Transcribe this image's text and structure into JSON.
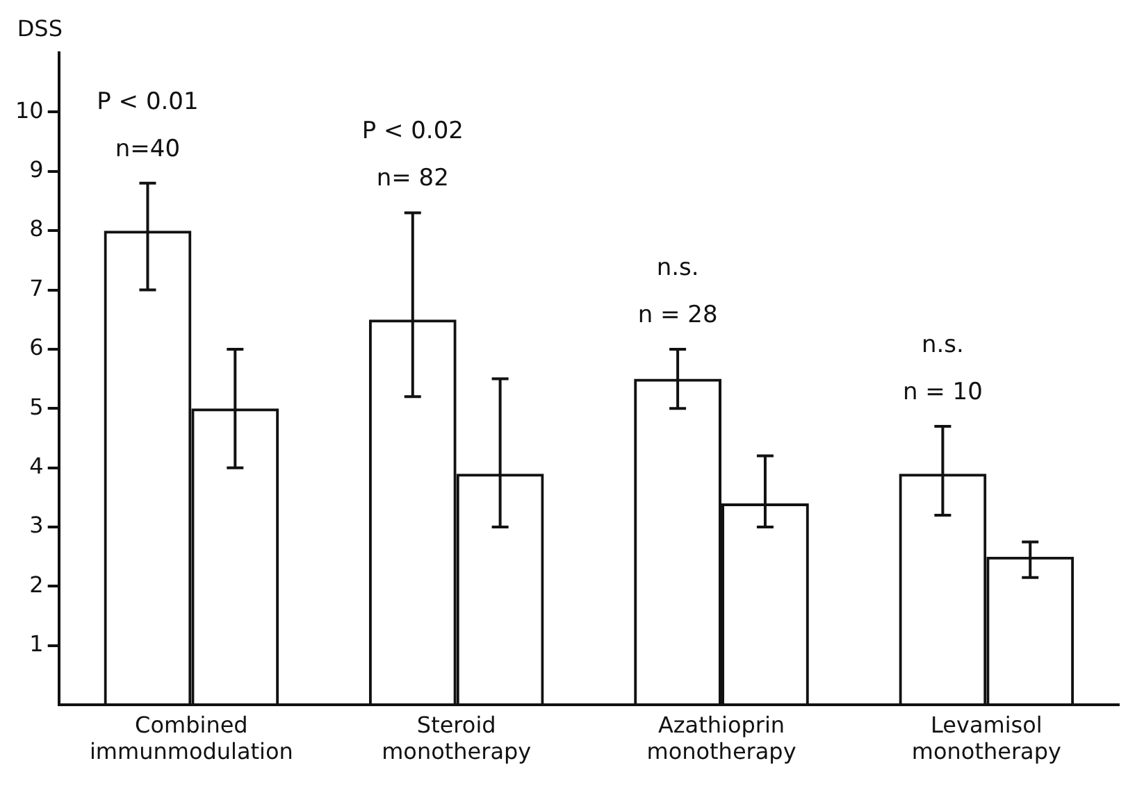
{
  "chart_data": {
    "type": "bar",
    "ylabel": "DSS",
    "categories": [
      "Combined immunmodulation",
      "Steroid monotherapy",
      "Azathioprin monotherapy",
      "Levamisol monotherapy"
    ],
    "series": [
      {
        "color": "#111111",
        "values": [
          8,
          6.5,
          5.5,
          3.9
        ],
        "errors": [
          [
            7.0,
            8.8
          ],
          [
            5.2,
            8.3
          ],
          [
            5.0,
            6.0
          ],
          [
            3.2,
            4.7
          ]
        ]
      },
      {
        "color": "#111111",
        "values": [
          5,
          3.9,
          3.4,
          2.5
        ],
        "errors": [
          [
            4.0,
            6.0
          ],
          [
            3.0,
            5.5
          ],
          [
            3.0,
            4.2
          ],
          [
            2.15,
            2.75
          ]
        ]
      }
    ],
    "ylim": [
      0,
      11
    ],
    "yticks": [
      1,
      2,
      3,
      4,
      5,
      6,
      7,
      8,
      9,
      10
    ],
    "grid": false,
    "legend": false,
    "annotations": [
      "P < 0.01",
      "n=40",
      "P < 0.02",
      "n= 82",
      "n.s.",
      "n = 28",
      "n.s.",
      "n = 10"
    ]
  }
}
